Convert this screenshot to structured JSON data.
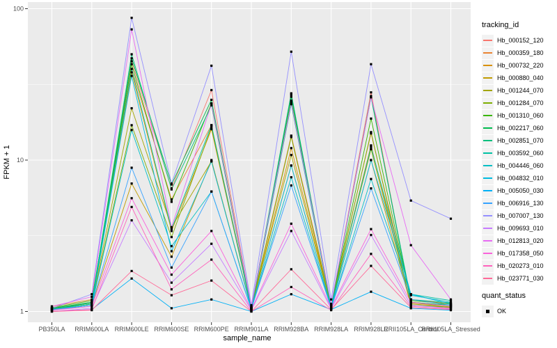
{
  "panel": {
    "bg_color": "#EBEBEB",
    "grid_color": "#FFFFFF",
    "tick_color": "#333333",
    "tick_label_color": "#4D4D4D"
  },
  "legend": {
    "color_title": "tracking_id",
    "shape_title": "quant_status",
    "shape_items": [
      {
        "label": "OK",
        "symbol": "filled-square",
        "color": "#000000"
      }
    ]
  },
  "chart_data": {
    "type": "line",
    "title": "",
    "xlabel": "sample_name",
    "ylabel": "FPKM + 1",
    "y_scale": "log10",
    "ylim": [
      0.95,
      110
    ],
    "grid": true,
    "legend_position": "right",
    "point_shape": "filled-square",
    "point_color": "#000000",
    "y_tick_labels": [
      "1",
      "10",
      "100"
    ],
    "y_tick_values": [
      1,
      10,
      100
    ],
    "y_minor_values": [
      3.162,
      31.62
    ],
    "categories": [
      "PB350LA",
      "RRIM600LA",
      "RRIM600LE",
      "RRIM600SE",
      "RRIM600PE",
      "RRIM901LA",
      "RRIM928BA",
      "RRIM928LA",
      "RRIM928LE",
      "RRII105LA_Control",
      "RRII105LA_Stressed"
    ],
    "series": [
      {
        "name": "Hb_000152_120",
        "color": "#F8766D",
        "values": [
          1.05,
          1.15,
          45,
          6.5,
          29,
          1.06,
          27,
          1.1,
          28,
          1.15,
          1.1
        ]
      },
      {
        "name": "Hb_000359_180",
        "color": "#EA8331",
        "values": [
          1.08,
          1.2,
          40,
          5.5,
          17,
          1.08,
          14.5,
          1.12,
          15,
          1.2,
          1.12
        ]
      },
      {
        "name": "Hb_000732_220",
        "color": "#D89000",
        "values": [
          1.04,
          1.12,
          38,
          3.4,
          16,
          1.05,
          12,
          1.08,
          12.5,
          1.14,
          1.08
        ]
      },
      {
        "name": "Hb_000880_040",
        "color": "#C09B00",
        "values": [
          1.02,
          1.1,
          7.0,
          2.3,
          10,
          1.04,
          9.2,
          1.06,
          10,
          1.1,
          1.06
        ]
      },
      {
        "name": "Hb_001244_070",
        "color": "#A3A500",
        "values": [
          1.05,
          1.14,
          22,
          3.6,
          9.8,
          1.06,
          10.8,
          1.08,
          11.8,
          1.12,
          1.08
        ]
      },
      {
        "name": "Hb_001284_070",
        "color": "#7CAE00",
        "values": [
          1.04,
          1.12,
          17,
          3.1,
          16.5,
          1.05,
          14.2,
          1.07,
          15.3,
          1.1,
          1.07
        ]
      },
      {
        "name": "Hb_001310_060",
        "color": "#39B600",
        "values": [
          1.06,
          1.18,
          43,
          5.3,
          23.7,
          1.06,
          24.7,
          1.1,
          18.8,
          1.18,
          1.12
        ]
      },
      {
        "name": "Hb_002217_060",
        "color": "#00BB4E",
        "values": [
          1.05,
          1.15,
          47,
          6.9,
          25,
          1.05,
          26.2,
          1.09,
          26.5,
          1.15,
          1.1
        ]
      },
      {
        "name": "Hb_002851_070",
        "color": "#00BF7D",
        "values": [
          1.04,
          1.14,
          50,
          6.4,
          23,
          1.05,
          27.6,
          1.08,
          26,
          1.2,
          1.14
        ]
      },
      {
        "name": "Hb_003592_060",
        "color": "#00C1A3",
        "values": [
          1.03,
          1.12,
          40,
          3.5,
          17,
          1.04,
          23.4,
          1.07,
          12.2,
          1.3,
          1.18
        ]
      },
      {
        "name": "Hb_004446_060",
        "color": "#00BFC4",
        "values": [
          1.02,
          1.1,
          15.8,
          2.7,
          6.2,
          1.03,
          7.7,
          1.05,
          7.5,
          1.28,
          1.15
        ]
      },
      {
        "name": "Hb_004832_010",
        "color": "#00BAE0",
        "values": [
          1.03,
          1.1,
          36,
          2.5,
          9.8,
          1.04,
          9.2,
          1.06,
          10,
          1.3,
          1.12
        ]
      },
      {
        "name": "Hb_005050_030",
        "color": "#00B0F6",
        "values": [
          1.0,
          1.03,
          1.65,
          1.05,
          1.2,
          1.0,
          1.3,
          1.03,
          1.35,
          1.05,
          1.02
        ]
      },
      {
        "name": "Hb_006916_130",
        "color": "#35A2FF",
        "values": [
          1.03,
          1.1,
          8.9,
          1.95,
          6.2,
          1.04,
          6.8,
          1.05,
          6.5,
          1.2,
          1.1
        ]
      },
      {
        "name": "Hb_007007_130",
        "color": "#9590FF",
        "values": [
          1.05,
          1.3,
          87,
          7.0,
          42,
          1.1,
          52,
          1.2,
          43,
          5.4,
          4.1
        ]
      },
      {
        "name": "Hb_009693_010",
        "color": "#C77CFF",
        "values": [
          1.0,
          1.05,
          4.0,
          1.55,
          2.8,
          1.02,
          3.4,
          1.04,
          3.2,
          1.1,
          1.05
        ]
      },
      {
        "name": "Hb_012813_020",
        "color": "#E76BF3",
        "values": [
          1.08,
          1.25,
          73,
          3.6,
          23.5,
          1.08,
          24,
          1.12,
          26,
          2.74,
          1.2
        ]
      },
      {
        "name": "Hb_017358_050",
        "color": "#FA62DB",
        "values": [
          1.02,
          1.08,
          5.6,
          1.75,
          3.4,
          1.03,
          3.8,
          1.06,
          3.5,
          1.15,
          1.08
        ]
      },
      {
        "name": "Hb_020273_010",
        "color": "#FF62BC",
        "values": [
          1.0,
          1.03,
          4.9,
          1.4,
          2.2,
          1.0,
          1.45,
          1.02,
          2.4,
          1.08,
          1.04
        ]
      },
      {
        "name": "Hb_023771_030",
        "color": "#FF6A98",
        "values": [
          1.0,
          1.02,
          1.85,
          1.28,
          1.6,
          1.0,
          1.9,
          1.03,
          2.0,
          1.06,
          1.03
        ]
      }
    ]
  }
}
